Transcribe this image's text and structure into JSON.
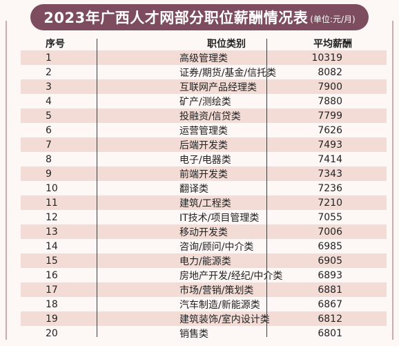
{
  "title": "2023年广西人才网部分职位薪酬情况表",
  "unit": "(单位:元/月)",
  "headers": {
    "rank": "序号",
    "category": "职位类别",
    "salary": "平均薪酬"
  },
  "rows": [
    {
      "rank": "1",
      "category": "高级管理类",
      "salary": "10319"
    },
    {
      "rank": "2",
      "category": "证券/期货/基金/信托类",
      "salary": "8082"
    },
    {
      "rank": "3",
      "category": "互联网产品经理类",
      "salary": "7900"
    },
    {
      "rank": "4",
      "category": "矿产/测绘类",
      "salary": "7880"
    },
    {
      "rank": "5",
      "category": "投融资/信贷类",
      "salary": "7799"
    },
    {
      "rank": "6",
      "category": "运营管理类",
      "salary": "7626"
    },
    {
      "rank": "7",
      "category": "后端开发类",
      "salary": "7493"
    },
    {
      "rank": "8",
      "category": "电子/电器类",
      "salary": "7414"
    },
    {
      "rank": "9",
      "category": "前端开发类",
      "salary": "7343"
    },
    {
      "rank": "10",
      "category": "翻译类",
      "salary": "7236"
    },
    {
      "rank": "11",
      "category": "建筑/工程类",
      "salary": "7210"
    },
    {
      "rank": "12",
      "category": "IT技术/项目管理类",
      "salary": "7055"
    },
    {
      "rank": "13",
      "category": "移动开发类",
      "salary": "7006"
    },
    {
      "rank": "14",
      "category": "咨询/顾问/中介类",
      "salary": "6985"
    },
    {
      "rank": "15",
      "category": "电力/能源类",
      "salary": "6905"
    },
    {
      "rank": "16",
      "category": "房地产开发/经纪/中介类",
      "salary": "6893"
    },
    {
      "rank": "17",
      "category": "市场/营销/策划类",
      "salary": "6881"
    },
    {
      "rank": "18",
      "category": "汽车制造/新能源类",
      "salary": "6867"
    },
    {
      "rank": "19",
      "category": "建筑装饰/室内设计类",
      "salary": "6812"
    },
    {
      "rank": "20",
      "category": "销售类",
      "salary": "6801"
    }
  ],
  "colors": {
    "title_bg": "#7d4d5f",
    "stripe": "#f3dcd6"
  }
}
